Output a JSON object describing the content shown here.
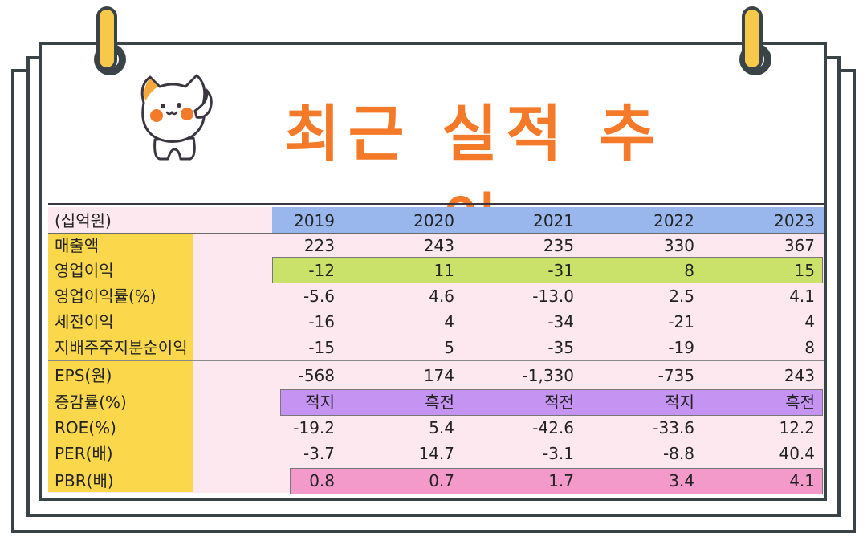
{
  "title": "최근 실적 추이",
  "table": {
    "unit_label": "(십억원)",
    "years": [
      "2019",
      "2020",
      "2021",
      "2022",
      "2023"
    ],
    "rows": [
      {
        "label": "매출액",
        "values": [
          "223",
          "243",
          "235",
          "330",
          "367"
        ]
      },
      {
        "label": "영업이익",
        "values": [
          "-12",
          "11",
          "-31",
          "8",
          "15"
        ]
      },
      {
        "label": "영업이익률(%)",
        "values": [
          "-5.6",
          "4.6",
          "-13.0",
          "2.5",
          "4.1"
        ]
      },
      {
        "label": "세전이익",
        "values": [
          "-16",
          "4",
          "-34",
          "-21",
          "4"
        ]
      },
      {
        "label": "지배주주지분순이익",
        "values": [
          "-15",
          "5",
          "-35",
          "-19",
          "8"
        ]
      },
      {
        "label": "EPS(원)",
        "values": [
          "-568",
          "174",
          "-1,330",
          "-735",
          "243"
        ]
      },
      {
        "label": "증감률(%)",
        "values": [
          "적지",
          "흑전",
          "적전",
          "적지",
          "흑전"
        ]
      },
      {
        "label": "ROE(%)",
        "values": [
          "-19.2",
          "5.4",
          "-42.6",
          "-33.6",
          "12.2"
        ]
      },
      {
        "label": "PER(배)",
        "values": [
          "-3.7",
          "14.7",
          "-3.1",
          "-8.8",
          "40.4"
        ]
      },
      {
        "label": "PBR(배)",
        "values": [
          "0.8",
          "0.7",
          "1.7",
          "3.4",
          "4.1"
        ]
      }
    ]
  },
  "colors": {
    "title": "#f47a2a",
    "label_column": "#fbd84b",
    "year_band": "#99b7ec",
    "operating_profit_row": "#cbe26a",
    "growth_rate_row": "#c593f2",
    "pbr_row": "#f39acb",
    "table_background": "#fde8f0"
  },
  "decorations": {
    "mascot": "cat-mascot-saluting",
    "rings": [
      "binder-ring-left",
      "binder-ring-right"
    ]
  }
}
